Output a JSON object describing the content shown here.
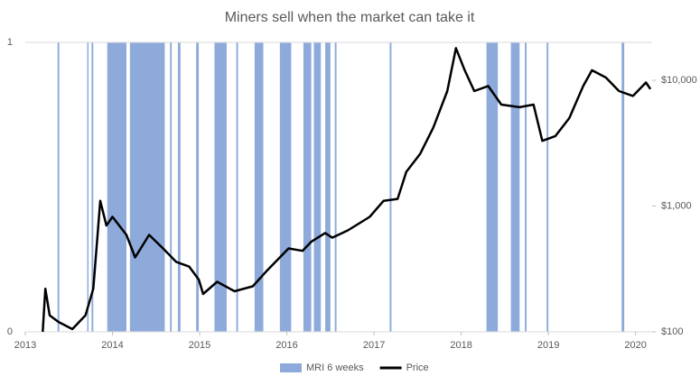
{
  "chart_data": {
    "type": "band_line",
    "title": "Miners sell when the market can take it",
    "xlim": [
      2013,
      2020.19
    ],
    "xticks": [
      2013,
      2014,
      2015,
      2016,
      2017,
      2018,
      2019,
      2020
    ],
    "ylim": [
      0,
      1
    ],
    "yticks": [
      0,
      1
    ],
    "y2lim": [
      100,
      20000
    ],
    "y2log": true,
    "y2ticks": [
      {
        "value": 100,
        "label": "$100"
      },
      {
        "value": 1000,
        "label": "$1,000"
      },
      {
        "value": 10000,
        "label": "$10,000"
      }
    ],
    "grid": true,
    "legend": "bottom",
    "series": [
      {
        "name": "MRI 6 weeks",
        "color": "#8eaadb",
        "kind": "band",
        "x_start": [
          2013.37,
          2013.71,
          2013.76,
          2013.94,
          2014.2,
          2014.66,
          2014.75,
          2014.96,
          2015.17,
          2015.42,
          2015.63,
          2015.92,
          2016.19,
          2016.31,
          2016.44,
          2016.55,
          2017.18,
          2018.29,
          2018.57,
          2018.73,
          2018.98,
          2019.84
        ],
        "x_end": [
          2013.39,
          2013.72,
          2013.78,
          2014.16,
          2014.6,
          2014.68,
          2014.78,
          2014.99,
          2015.31,
          2015.44,
          2015.73,
          2016.05,
          2016.28,
          2016.39,
          2016.5,
          2016.57,
          2017.2,
          2018.42,
          2018.67,
          2018.75,
          2019.0,
          2019.87
        ],
        "values": [
          1,
          1,
          1,
          1,
          1,
          1,
          1,
          1,
          1,
          1,
          1,
          1,
          1,
          1,
          1,
          1,
          1,
          1,
          1,
          1,
          1,
          1
        ]
      },
      {
        "name": "Price",
        "color": "#000000",
        "kind": "line",
        "axis": "y2",
        "x": [
          2013.2,
          2013.23,
          2013.28,
          2013.38,
          2013.54,
          2013.69,
          2013.78,
          2013.86,
          2013.93,
          2014.0,
          2014.16,
          2014.26,
          2014.42,
          2014.58,
          2014.73,
          2014.88,
          2014.99,
          2015.04,
          2015.2,
          2015.4,
          2015.61,
          2015.76,
          2015.92,
          2016.02,
          2016.18,
          2016.28,
          2016.44,
          2016.52,
          2016.7,
          2016.95,
          2017.11,
          2017.27,
          2017.37,
          2017.53,
          2017.68,
          2017.84,
          2017.94,
          2018.04,
          2018.15,
          2018.31,
          2018.46,
          2018.67,
          2018.83,
          2018.93,
          2019.08,
          2019.24,
          2019.4,
          2019.5,
          2019.66,
          2019.81,
          2019.97,
          2020.12,
          2020.17
        ],
        "values": [
          100,
          220,
          135,
          120,
          105,
          135,
          220,
          1100,
          700,
          820,
          590,
          390,
          590,
          460,
          360,
          330,
          260,
          200,
          250,
          210,
          230,
          300,
          390,
          460,
          440,
          520,
          610,
          560,
          640,
          820,
          1100,
          1140,
          1870,
          2600,
          4200,
          8200,
          18000,
          12000,
          8200,
          9000,
          6400,
          6100,
          6400,
          3300,
          3600,
          5000,
          9000,
          12000,
          10500,
          8200,
          7500,
          9600,
          8500
        ]
      }
    ]
  }
}
